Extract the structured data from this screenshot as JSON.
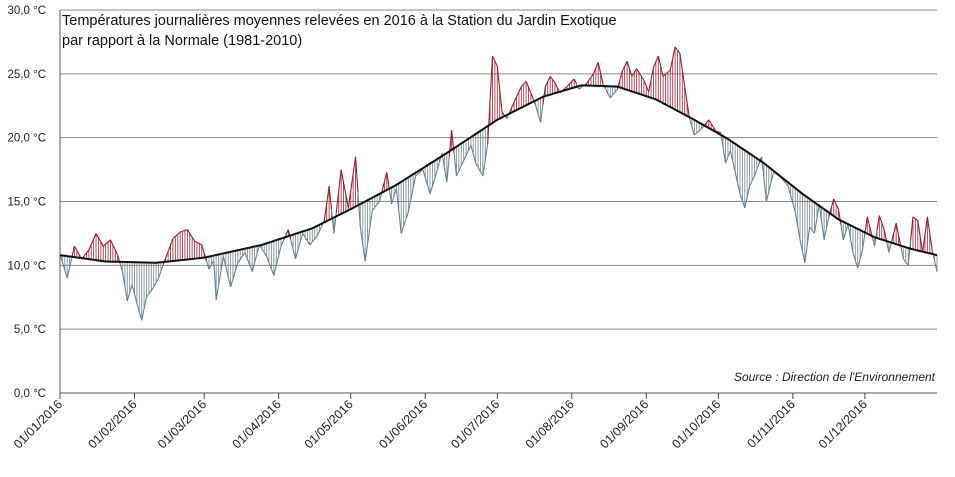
{
  "chart_data": {
    "type": "line",
    "title_lines": [
      "Températures journalières moyennes relevées en 2016 à la Station du Jardin Exotique",
      "par rapport à la Normale (1981-2010)"
    ],
    "source": "Source : Direction de l'Environnement",
    "x_range": [
      "2016-01-01",
      "2016-12-31"
    ],
    "ylim": [
      0,
      30
    ],
    "y_ticks": [
      "0,0 °C",
      "5,0 °C",
      "10,0 °C",
      "15,0 °C",
      "20,0 °C",
      "25,0 °C",
      "30,0 °C"
    ],
    "y_tick_values": [
      0,
      5,
      10,
      15,
      20,
      25,
      30
    ],
    "x_ticks": [
      "01/01/2016",
      "01/02/2016",
      "01/03/2016",
      "01/04/2016",
      "01/05/2016",
      "01/06/2016",
      "01/07/2016",
      "01/08/2016",
      "01/09/2016",
      "01/10/2016",
      "01/11/2016",
      "01/12/2016"
    ],
    "grid": true,
    "colors": {
      "above": "#9b1b30",
      "below": "#6b7f8c",
      "normal": "#111111",
      "grid": "#8a8a8a"
    },
    "normal_series": [
      [
        "2016-01-01",
        10.8
      ],
      [
        "2016-01-20",
        10.3
      ],
      [
        "2016-02-10",
        10.2
      ],
      [
        "2016-03-01",
        10.6
      ],
      [
        "2016-03-25",
        11.6
      ],
      [
        "2016-04-15",
        12.9
      ],
      [
        "2016-05-01",
        14.4
      ],
      [
        "2016-05-20",
        16.3
      ],
      [
        "2016-06-10",
        18.8
      ],
      [
        "2016-07-01",
        21.4
      ],
      [
        "2016-07-20",
        23.2
      ],
      [
        "2016-08-05",
        24.1
      ],
      [
        "2016-08-20",
        24.0
      ],
      [
        "2016-09-05",
        23.0
      ],
      [
        "2016-09-20",
        21.5
      ],
      [
        "2016-10-05",
        19.9
      ],
      [
        "2016-10-20",
        18.0
      ],
      [
        "2016-11-05",
        15.6
      ],
      [
        "2016-11-20",
        13.6
      ],
      [
        "2016-12-05",
        12.2
      ],
      [
        "2016-12-20",
        11.3
      ],
      [
        "2016-12-31",
        10.8
      ]
    ],
    "daily_series": [
      [
        "2016-01-01",
        10.9
      ],
      [
        "2016-01-04",
        9.0
      ],
      [
        "2016-01-07",
        11.5
      ],
      [
        "2016-01-10",
        10.5
      ],
      [
        "2016-01-13",
        11.2
      ],
      [
        "2016-01-16",
        12.5
      ],
      [
        "2016-01-19",
        11.5
      ],
      [
        "2016-01-22",
        12.0
      ],
      [
        "2016-01-25",
        10.8
      ],
      [
        "2016-01-27",
        9.5
      ],
      [
        "2016-01-29",
        7.2
      ],
      [
        "2016-01-31",
        8.5
      ],
      [
        "2016-02-02",
        7.0
      ],
      [
        "2016-02-04",
        5.7
      ],
      [
        "2016-02-06",
        7.5
      ],
      [
        "2016-02-09",
        8.3
      ],
      [
        "2016-02-11",
        9.0
      ],
      [
        "2016-02-14",
        10.6
      ],
      [
        "2016-02-17",
        12.1
      ],
      [
        "2016-02-20",
        12.6
      ],
      [
        "2016-02-23",
        12.8
      ],
      [
        "2016-02-26",
        11.9
      ],
      [
        "2016-02-29",
        11.6
      ],
      [
        "2016-03-03",
        9.7
      ],
      [
        "2016-03-05",
        10.4
      ],
      [
        "2016-03-06",
        7.3
      ],
      [
        "2016-03-09",
        10.7
      ],
      [
        "2016-03-12",
        8.3
      ],
      [
        "2016-03-15",
        10.2
      ],
      [
        "2016-03-18",
        11.0
      ],
      [
        "2016-03-21",
        9.5
      ],
      [
        "2016-03-24",
        11.6
      ],
      [
        "2016-03-27",
        10.7
      ],
      [
        "2016-03-30",
        9.2
      ],
      [
        "2016-04-02",
        11.5
      ],
      [
        "2016-04-05",
        12.8
      ],
      [
        "2016-04-08",
        10.5
      ],
      [
        "2016-04-11",
        12.5
      ],
      [
        "2016-04-14",
        11.6
      ],
      [
        "2016-04-17",
        12.3
      ],
      [
        "2016-04-20",
        13.5
      ],
      [
        "2016-04-22",
        16.2
      ],
      [
        "2016-04-24",
        12.5
      ],
      [
        "2016-04-27",
        17.5
      ],
      [
        "2016-04-30",
        14.5
      ],
      [
        "2016-05-03",
        18.5
      ],
      [
        "2016-05-05",
        13.0
      ],
      [
        "2016-05-07",
        10.3
      ],
      [
        "2016-05-10",
        14.3
      ],
      [
        "2016-05-13",
        15.0
      ],
      [
        "2016-05-16",
        17.3
      ],
      [
        "2016-05-18",
        14.8
      ],
      [
        "2016-05-20",
        16.0
      ],
      [
        "2016-05-22",
        12.5
      ],
      [
        "2016-05-25",
        14.2
      ],
      [
        "2016-05-28",
        17.0
      ],
      [
        "2016-05-31",
        17.5
      ],
      [
        "2016-06-03",
        15.6
      ],
      [
        "2016-06-05",
        16.8
      ],
      [
        "2016-06-08",
        18.8
      ],
      [
        "2016-06-10",
        16.5
      ],
      [
        "2016-06-12",
        20.6
      ],
      [
        "2016-06-14",
        17.0
      ],
      [
        "2016-06-17",
        18.2
      ],
      [
        "2016-06-20",
        19.4
      ],
      [
        "2016-06-22",
        18.0
      ],
      [
        "2016-06-25",
        17.0
      ],
      [
        "2016-06-27",
        19.5
      ],
      [
        "2016-06-29",
        26.4
      ],
      [
        "2016-07-01",
        25.6
      ],
      [
        "2016-07-03",
        22.0
      ],
      [
        "2016-07-05",
        21.5
      ],
      [
        "2016-07-08",
        22.8
      ],
      [
        "2016-07-11",
        24.0
      ],
      [
        "2016-07-13",
        24.4
      ],
      [
        "2016-07-15",
        23.5
      ],
      [
        "2016-07-17",
        22.5
      ],
      [
        "2016-07-19",
        21.2
      ],
      [
        "2016-07-21",
        24.0
      ],
      [
        "2016-07-23",
        24.8
      ],
      [
        "2016-07-25",
        24.3
      ],
      [
        "2016-07-27",
        23.5
      ],
      [
        "2016-07-30",
        24.0
      ],
      [
        "2016-08-02",
        24.6
      ],
      [
        "2016-08-04",
        23.8
      ],
      [
        "2016-08-07",
        24.2
      ],
      [
        "2016-08-10",
        25.0
      ],
      [
        "2016-08-12",
        25.9
      ],
      [
        "2016-08-14",
        24.2
      ],
      [
        "2016-08-17",
        23.1
      ],
      [
        "2016-08-20",
        23.8
      ],
      [
        "2016-08-22",
        25.2
      ],
      [
        "2016-08-24",
        26.0
      ],
      [
        "2016-08-26",
        24.8
      ],
      [
        "2016-08-28",
        25.4
      ],
      [
        "2016-08-31",
        24.5
      ],
      [
        "2016-09-02",
        23.6
      ],
      [
        "2016-09-04",
        25.5
      ],
      [
        "2016-09-06",
        26.4
      ],
      [
        "2016-09-08",
        24.8
      ],
      [
        "2016-09-11",
        25.3
      ],
      [
        "2016-09-13",
        27.1
      ],
      [
        "2016-09-15",
        26.6
      ],
      [
        "2016-09-17",
        24.0
      ],
      [
        "2016-09-19",
        21.5
      ],
      [
        "2016-09-21",
        20.2
      ],
      [
        "2016-09-24",
        20.7
      ],
      [
        "2016-09-27",
        21.4
      ],
      [
        "2016-09-30",
        20.5
      ],
      [
        "2016-10-02",
        20.4
      ],
      [
        "2016-10-04",
        18.0
      ],
      [
        "2016-10-06",
        19.0
      ],
      [
        "2016-10-08",
        17.3
      ],
      [
        "2016-10-10",
        15.6
      ],
      [
        "2016-10-12",
        14.5
      ],
      [
        "2016-10-14",
        16.2
      ],
      [
        "2016-10-16",
        17.0
      ],
      [
        "2016-10-19",
        18.5
      ],
      [
        "2016-10-21",
        15.0
      ],
      [
        "2016-10-24",
        17.3
      ],
      [
        "2016-10-27",
        16.9
      ],
      [
        "2016-10-30",
        16.2
      ],
      [
        "2016-11-02",
        14.2
      ],
      [
        "2016-11-04",
        12.0
      ],
      [
        "2016-11-06",
        10.2
      ],
      [
        "2016-11-08",
        13.0
      ],
      [
        "2016-11-10",
        12.5
      ],
      [
        "2016-11-12",
        14.8
      ],
      [
        "2016-11-14",
        12.0
      ],
      [
        "2016-11-16",
        13.8
      ],
      [
        "2016-11-18",
        15.2
      ],
      [
        "2016-11-20",
        14.4
      ],
      [
        "2016-11-22",
        12.0
      ],
      [
        "2016-11-24",
        13.2
      ],
      [
        "2016-11-26",
        11.0
      ],
      [
        "2016-11-28",
        9.8
      ],
      [
        "2016-11-30",
        11.2
      ],
      [
        "2016-12-02",
        13.8
      ],
      [
        "2016-12-05",
        11.5
      ],
      [
        "2016-12-07",
        13.9
      ],
      [
        "2016-12-09",
        12.8
      ],
      [
        "2016-12-11",
        11.0
      ],
      [
        "2016-12-14",
        13.3
      ],
      [
        "2016-12-17",
        10.5
      ],
      [
        "2016-12-19",
        10.0
      ],
      [
        "2016-12-21",
        13.8
      ],
      [
        "2016-12-23",
        13.5
      ],
      [
        "2016-12-25",
        11.0
      ],
      [
        "2016-12-27",
        13.8
      ],
      [
        "2016-12-29",
        11.2
      ],
      [
        "2016-12-31",
        9.5
      ]
    ]
  }
}
